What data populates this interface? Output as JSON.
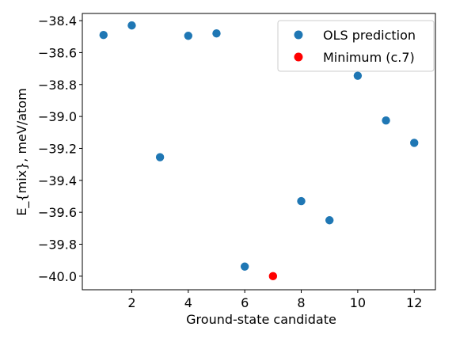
{
  "chart_data": {
    "type": "scatter",
    "xlabel": "Ground-state candidate",
    "ylabel": "E_{mix}, meV/atom",
    "xlim": [
      0.25,
      12.75
    ],
    "ylim": [
      -40.085,
      -38.355
    ],
    "xticks": [
      2,
      4,
      6,
      8,
      10,
      12
    ],
    "yticks": [
      -40.0,
      -39.8,
      -39.6,
      -39.4,
      -39.2,
      -39.0,
      -38.8,
      -38.6,
      -38.4
    ],
    "grid": false,
    "legend_position": "top-right",
    "series": [
      {
        "name": "OLS prediction",
        "color": "#1f77b4",
        "points": [
          {
            "x": 1,
            "y": -38.49
          },
          {
            "x": 2,
            "y": -38.43
          },
          {
            "x": 3,
            "y": -39.255
          },
          {
            "x": 4,
            "y": -38.495
          },
          {
            "x": 5,
            "y": -38.48
          },
          {
            "x": 6,
            "y": -39.94
          },
          {
            "x": 8,
            "y": -39.53
          },
          {
            "x": 9,
            "y": -39.65
          },
          {
            "x": 10,
            "y": -38.745
          },
          {
            "x": 11,
            "y": -39.025
          },
          {
            "x": 12,
            "y": -39.165
          }
        ]
      },
      {
        "name": "Minimum (c.7)",
        "color": "#ff0000",
        "points": [
          {
            "x": 7,
            "y": -40.0
          }
        ]
      }
    ]
  }
}
